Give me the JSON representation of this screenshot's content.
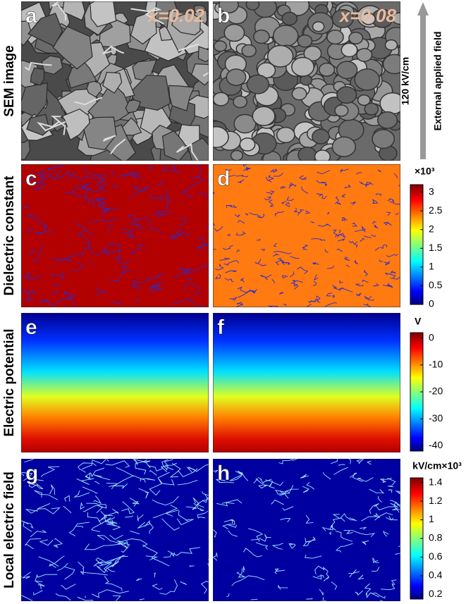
{
  "row_labels": [
    "SEM image",
    "Dielectric constant",
    "Electric potential",
    "Local electric field"
  ],
  "panels": [
    {
      "letter": "a",
      "composition": "x=0.02"
    },
    {
      "letter": "b",
      "composition": "x=0.08"
    },
    {
      "letter": "c"
    },
    {
      "letter": "d"
    },
    {
      "letter": "e"
    },
    {
      "letter": "f"
    },
    {
      "letter": "g"
    },
    {
      "letter": "h"
    }
  ],
  "field_arrow": {
    "magnitude": "120 kV/cm",
    "label": "External applied field"
  },
  "colorbars": [
    {
      "label": "×10³",
      "lim": [
        0,
        3.2
      ],
      "ticks": [
        0,
        0.5,
        1,
        1.5,
        2,
        2.5,
        3
      ]
    },
    {
      "label": "V",
      "lim": [
        -42,
        2
      ],
      "ticks": [
        0,
        -10,
        -20,
        -30,
        -40
      ]
    },
    {
      "label": "kV/cm×10³",
      "lim": [
        0.15,
        1.45
      ],
      "ticks": [
        0.2,
        0.4,
        0.6,
        0.8,
        1,
        1.2,
        1.4
      ]
    }
  ]
}
